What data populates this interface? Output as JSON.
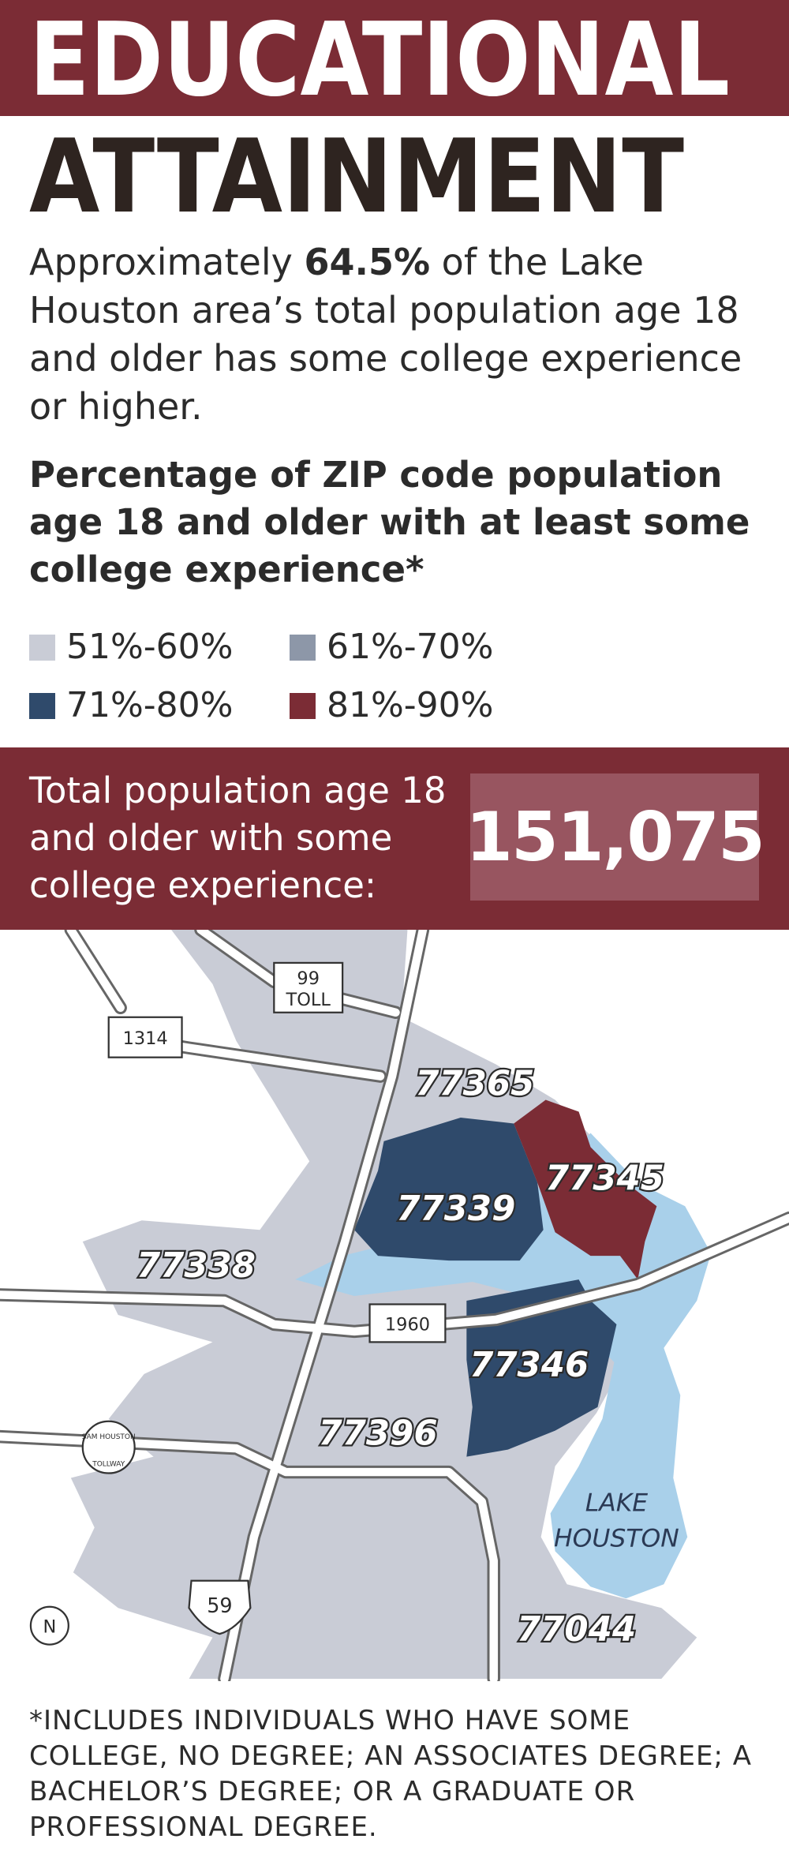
{
  "header": {
    "title_line1": "EDUCATIONAL",
    "title_line2": "ATTAINMENT"
  },
  "intro": {
    "before": "Approximately ",
    "highlight": "64.5%",
    "after": " of the Lake Houston area’s total population age 18 and older has some college experience or higher."
  },
  "subtitle": "Percentage of ZIP code population age 18 and older with at least some college experience*",
  "legend": [
    {
      "label": "51%-60%",
      "color": "#c9ccd6"
    },
    {
      "label": "61%-70%",
      "color": "#8d97a8"
    },
    {
      "label": "71%-80%",
      "color": "#2f4a6b"
    },
    {
      "label": "81%-90%",
      "color": "#7b2c35"
    }
  ],
  "total": {
    "label": "Total population age 18 and older with some college experience:",
    "value": "151,075"
  },
  "map": {
    "zips": [
      "77365",
      "77345",
      "77339",
      "77338",
      "77346",
      "77396",
      "77044"
    ],
    "roads": {
      "toll_number": "99",
      "toll_word": "TOLL",
      "fm1314": "1314",
      "fm1960": "1960",
      "us59": "59",
      "beltway_top": "SAM HOUSTON",
      "beltway_bottom": "TOLLWAY"
    },
    "lake": [
      "LAKE",
      "HOUSTON"
    ],
    "north": "N"
  },
  "footnote": "*INCLUDES INDIVIDUALS WHO HAVE SOME COLLEGE, NO DEGREE; AN ASSOCIATES DEGREE; A BACHELOR’S DEGREE; OR A GRADUATE OR PROFESSIONAL DEGREE."
}
